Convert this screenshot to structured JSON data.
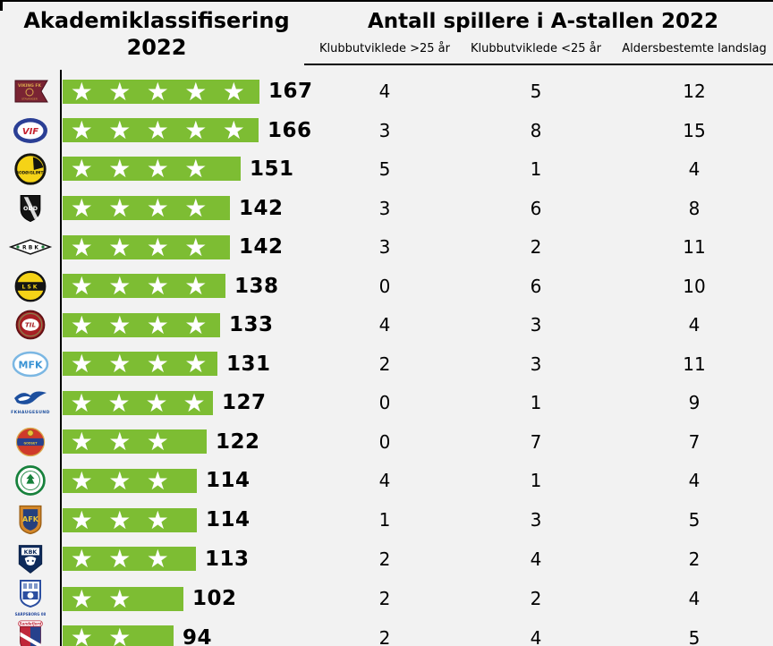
{
  "page": {
    "left_title_line1": "Akademiklassifisering",
    "left_title_line2": "2022",
    "right_title": "Antall spillere i A-stallen 2022",
    "columns": [
      "Klubbutviklede >25 år",
      "Klubbutviklede <25 år",
      "Aldersbestemte landslag"
    ]
  },
  "colors": {
    "background": "#f2f2f2",
    "bar_green": "#7dbd33",
    "star_white": "#ffffff",
    "text_black": "#000000"
  },
  "rows": [
    {
      "club": "Viking FK",
      "logo": "viking-fk-logo",
      "stars": 5,
      "score": 167,
      "over25": 4,
      "under25": 5,
      "youth_national": 12
    },
    {
      "club": "Vålerenga",
      "logo": "valerenga-logo",
      "stars": 5,
      "score": 166,
      "over25": 3,
      "under25": 8,
      "youth_national": 15
    },
    {
      "club": "Bodø/Glimt",
      "logo": "bodo-glimt-logo",
      "stars": 4,
      "score": 151,
      "over25": 5,
      "under25": 1,
      "youth_national": 4
    },
    {
      "club": "Odd",
      "logo": "odd-logo",
      "stars": 4,
      "score": 142,
      "over25": 3,
      "under25": 6,
      "youth_national": 8
    },
    {
      "club": "Rosenborg",
      "logo": "rosenborg-logo",
      "stars": 4,
      "score": 142,
      "over25": 3,
      "under25": 2,
      "youth_national": 11
    },
    {
      "club": "Lillestrøm",
      "logo": "lillestrom-logo",
      "stars": 4,
      "score": 138,
      "over25": 0,
      "under25": 6,
      "youth_national": 10
    },
    {
      "club": "Tromsø",
      "logo": "tromso-logo",
      "stars": 4,
      "score": 133,
      "over25": 4,
      "under25": 3,
      "youth_national": 4
    },
    {
      "club": "Molde FK",
      "logo": "molde-logo",
      "stars": 4,
      "score": 131,
      "over25": 2,
      "under25": 3,
      "youth_national": 11
    },
    {
      "club": "FK Haugesund",
      "logo": "haugesund-logo",
      "stars": 4,
      "score": 127,
      "over25": 0,
      "under25": 1,
      "youth_national": 9
    },
    {
      "club": "Strømsgodset",
      "logo": "stromsgodset-logo",
      "stars": 3,
      "score": 122,
      "over25": 0,
      "under25": 7,
      "youth_national": 7
    },
    {
      "club": "HamKam",
      "logo": "hamkam-logo",
      "stars": 3,
      "score": 114,
      "over25": 4,
      "under25": 1,
      "youth_national": 4
    },
    {
      "club": "Aalesund",
      "logo": "aalesund-logo",
      "stars": 3,
      "score": 114,
      "over25": 1,
      "under25": 3,
      "youth_national": 5
    },
    {
      "club": "Kristiansund",
      "logo": "kristiansund-logo",
      "stars": 3,
      "score": 113,
      "over25": 2,
      "under25": 4,
      "youth_national": 2
    },
    {
      "club": "Sarpsborg 08",
      "logo": "sarpsborg-08-logo",
      "stars": 2,
      "score": 102,
      "over25": 2,
      "under25": 2,
      "youth_national": 4
    },
    {
      "club": "Sandefjord",
      "logo": "sandefjord-logo",
      "stars": 2,
      "score": 94,
      "over25": 2,
      "under25": 4,
      "youth_national": 5
    }
  ],
  "chart_data": {
    "type": "bar",
    "orientation": "horizontal",
    "title": "Akademiklassifisering 2022",
    "categories": [
      "Viking FK",
      "Vålerenga",
      "Bodø/Glimt",
      "Odd",
      "Rosenborg",
      "Lillestrøm",
      "Tromsø",
      "Molde FK",
      "FK Haugesund",
      "Strømsgodset",
      "HamKam",
      "Aalesund",
      "Kristiansund",
      "Sarpsborg 08",
      "Sandefjord"
    ],
    "values": [
      167,
      166,
      151,
      142,
      142,
      138,
      133,
      131,
      127,
      122,
      114,
      114,
      113,
      102,
      94
    ],
    "stars_per_bar": [
      5,
      5,
      4,
      4,
      4,
      4,
      4,
      4,
      4,
      3,
      3,
      3,
      3,
      2,
      2
    ],
    "data_labels": true,
    "grid": false,
    "bar_color": "#7dbd33",
    "companion_table": {
      "title": "Antall spillere i A-stallen 2022",
      "columns": [
        "Klubbutviklede >25 år",
        "Klubbutviklede <25 år",
        "Aldersbestemte landslag"
      ],
      "rows": [
        [
          4,
          5,
          12
        ],
        [
          3,
          8,
          15
        ],
        [
          5,
          1,
          4
        ],
        [
          3,
          6,
          8
        ],
        [
          3,
          2,
          11
        ],
        [
          0,
          6,
          10
        ],
        [
          4,
          3,
          4
        ],
        [
          2,
          3,
          11
        ],
        [
          0,
          1,
          9
        ],
        [
          0,
          7,
          7
        ],
        [
          4,
          1,
          4
        ],
        [
          1,
          3,
          5
        ],
        [
          2,
          4,
          2
        ],
        [
          2,
          2,
          4
        ],
        [
          2,
          4,
          5
        ]
      ]
    }
  }
}
